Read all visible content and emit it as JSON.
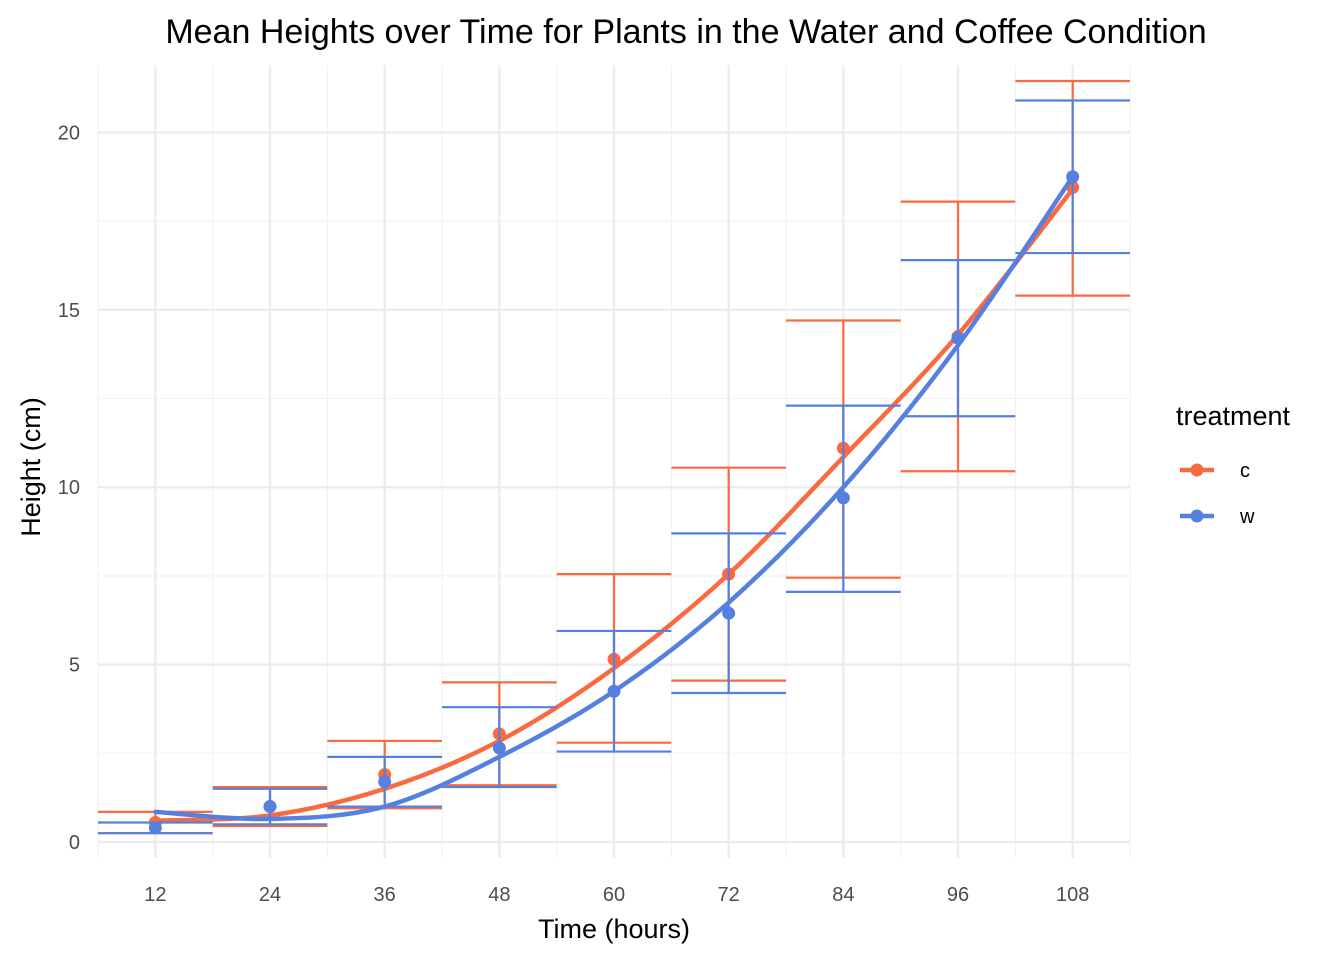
{
  "chart_data": {
    "type": "line",
    "title": "Mean Heights over Time for Plants in the Water and Coffee Condition",
    "xlabel": "Time (hours)",
    "ylabel": "Height (cm)",
    "x": [
      12,
      24,
      36,
      48,
      60,
      72,
      84,
      96,
      108
    ],
    "xticks": [
      12,
      24,
      36,
      48,
      60,
      72,
      84,
      96,
      108
    ],
    "yticks": [
      0,
      5,
      10,
      15,
      20
    ],
    "xlim": [
      6,
      114
    ],
    "ylim": [
      -0.45,
      21.9
    ],
    "grid": true,
    "legend": {
      "title": "treatment",
      "position": "right"
    },
    "series": [
      {
        "name": "c",
        "color": "#f96a41",
        "means": [
          0.55,
          1.0,
          1.9,
          3.05,
          5.15,
          7.55,
          11.1,
          14.25,
          18.45
        ],
        "err_low": [
          0.25,
          0.45,
          0.95,
          1.6,
          2.8,
          4.55,
          7.45,
          10.45,
          15.4
        ],
        "err_high": [
          0.85,
          1.55,
          2.85,
          4.5,
          7.55,
          10.55,
          14.7,
          18.05,
          21.45
        ],
        "fit": [
          0.6,
          0.75,
          1.5,
          2.85,
          4.9,
          7.55,
          10.85,
          14.3,
          18.4
        ]
      },
      {
        "name": "w",
        "color": "#5580e0",
        "means": [
          0.4,
          1.0,
          1.7,
          2.65,
          4.25,
          6.45,
          9.7,
          14.2,
          18.75
        ],
        "err_low": [
          0.25,
          0.5,
          1.0,
          1.55,
          2.55,
          4.2,
          7.05,
          12.0,
          16.6
        ],
        "err_high": [
          0.55,
          1.5,
          2.4,
          3.8,
          5.95,
          8.7,
          12.3,
          16.4,
          20.9
        ],
        "fit": [
          0.85,
          0.65,
          1.0,
          2.4,
          4.25,
          6.75,
          10.0,
          14.0,
          18.75
        ]
      }
    ]
  }
}
